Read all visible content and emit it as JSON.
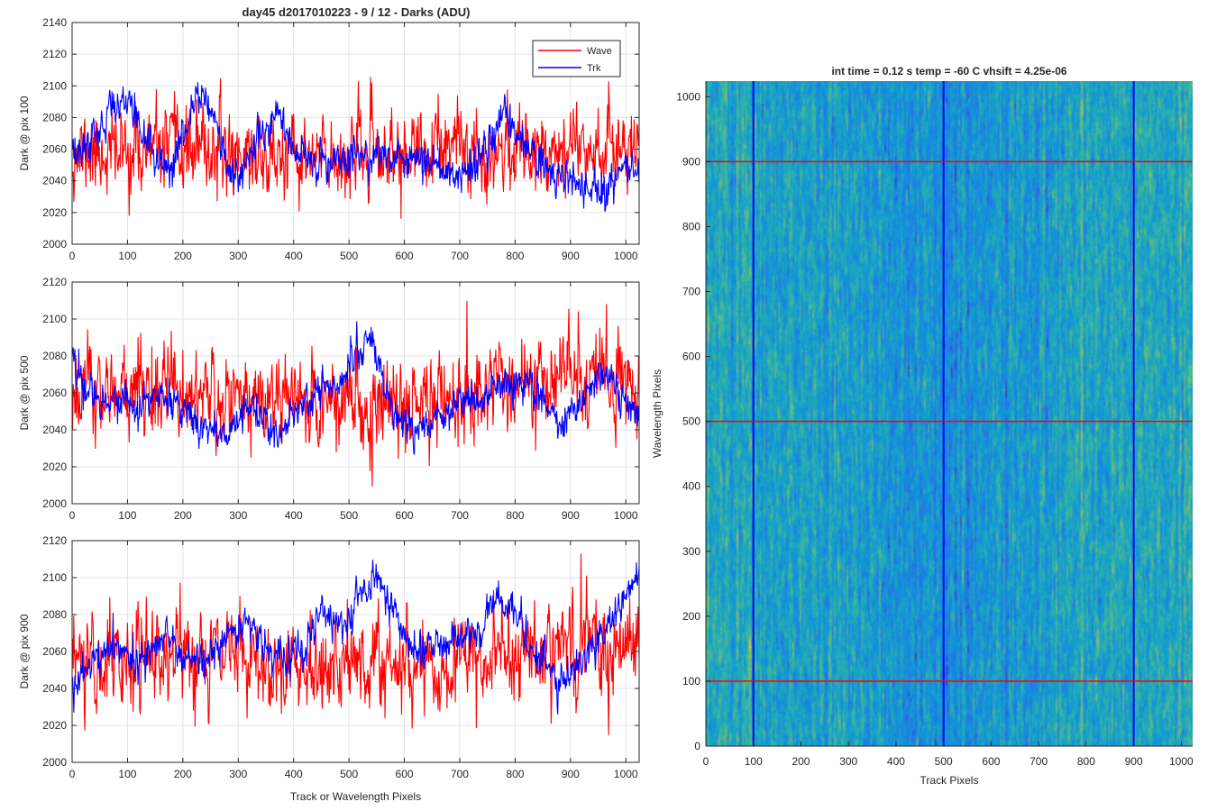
{
  "figure": {
    "title": "day45 d2017010223 - 9 / 12 - Darks (ADU)",
    "legend": {
      "placement": "top-right of first panel",
      "entries": [
        "Wave",
        "Trk"
      ]
    },
    "colors": {
      "wave": "#ff0000",
      "trk": "#0000ff",
      "grid": "#e3e3e3",
      "axis": "#262626"
    }
  },
  "chart_data": [
    {
      "type": "line",
      "ylabel": "Dark @ pix 100",
      "xlim": [
        0,
        1024
      ],
      "ylim": [
        2000,
        2140
      ],
      "xticks": [
        0,
        100,
        200,
        300,
        400,
        500,
        600,
        700,
        800,
        900,
        1000
      ],
      "yticks": [
        2000,
        2020,
        2040,
        2060,
        2080,
        2100,
        2120,
        2140
      ],
      "grid": true,
      "series": [
        {
          "name": "Wave",
          "color": "#ff0000",
          "noise": 13,
          "seed": 11,
          "anchors": [
            [
              0,
              2058
            ],
            [
              100,
              2058
            ],
            [
              200,
              2060
            ],
            [
              300,
              2058
            ],
            [
              400,
              2052
            ],
            [
              500,
              2056
            ],
            [
              600,
              2056
            ],
            [
              700,
              2060
            ],
            [
              800,
              2060
            ],
            [
              900,
              2064
            ],
            [
              1024,
              2062
            ]
          ]
        },
        {
          "name": "Trk",
          "color": "#0000ff",
          "noise": 6,
          "seed": 12,
          "anchors": [
            [
              0,
              2052
            ],
            [
              40,
              2068
            ],
            [
              70,
              2084
            ],
            [
              95,
              2094
            ],
            [
              120,
              2078
            ],
            [
              150,
              2054
            ],
            [
              180,
              2048
            ],
            [
              205,
              2072
            ],
            [
              225,
              2096
            ],
            [
              250,
              2092
            ],
            [
              270,
              2058
            ],
            [
              300,
              2042
            ],
            [
              330,
              2062
            ],
            [
              370,
              2082
            ],
            [
              400,
              2058
            ],
            [
              450,
              2052
            ],
            [
              500,
              2055
            ],
            [
              550,
              2058
            ],
            [
              620,
              2052
            ],
            [
              700,
              2044
            ],
            [
              740,
              2052
            ],
            [
              780,
              2082
            ],
            [
              820,
              2060
            ],
            [
              870,
              2045
            ],
            [
              920,
              2038
            ],
            [
              960,
              2034
            ],
            [
              1000,
              2054
            ],
            [
              1024,
              2046
            ]
          ]
        }
      ]
    },
    {
      "type": "line",
      "ylabel": "Dark @ pix 500",
      "xlim": [
        0,
        1024
      ],
      "ylim": [
        2000,
        2120
      ],
      "xticks": [
        0,
        100,
        200,
        300,
        400,
        500,
        600,
        700,
        800,
        900,
        1000
      ],
      "yticks": [
        2000,
        2020,
        2040,
        2060,
        2080,
        2100,
        2120
      ],
      "grid": true,
      "series": [
        {
          "name": "Wave",
          "color": "#ff0000",
          "noise": 13,
          "seed": 21,
          "anchors": [
            [
              0,
              2060
            ],
            [
              200,
              2062
            ],
            [
              300,
              2058
            ],
            [
              400,
              2055
            ],
            [
              500,
              2052
            ],
            [
              600,
              2057
            ],
            [
              700,
              2058
            ],
            [
              800,
              2066
            ],
            [
              900,
              2068
            ],
            [
              1024,
              2064
            ]
          ]
        },
        {
          "name": "Trk",
          "color": "#0000ff",
          "noise": 5,
          "seed": 22,
          "anchors": [
            [
              0,
              2080
            ],
            [
              20,
              2064
            ],
            [
              60,
              2058
            ],
            [
              100,
              2052
            ],
            [
              160,
              2058
            ],
            [
              200,
              2050
            ],
            [
              240,
              2040
            ],
            [
              280,
              2038
            ],
            [
              320,
              2056
            ],
            [
              350,
              2042
            ],
            [
              380,
              2036
            ],
            [
              410,
              2052
            ],
            [
              450,
              2062
            ],
            [
              490,
              2068
            ],
            [
              530,
              2090
            ],
            [
              550,
              2080
            ],
            [
              580,
              2050
            ],
            [
              620,
              2038
            ],
            [
              660,
              2048
            ],
            [
              700,
              2058
            ],
            [
              740,
              2052
            ],
            [
              760,
              2062
            ],
            [
              800,
              2066
            ],
            [
              840,
              2060
            ],
            [
              880,
              2042
            ],
            [
              920,
              2056
            ],
            [
              960,
              2070
            ],
            [
              1000,
              2058
            ],
            [
              1024,
              2046
            ]
          ]
        }
      ]
    },
    {
      "type": "line",
      "ylabel": "Dark @ pix 900",
      "xlabel": "Track or Wavelength Pixels",
      "xlim": [
        0,
        1024
      ],
      "ylim": [
        2000,
        2120
      ],
      "xticks": [
        0,
        100,
        200,
        300,
        400,
        500,
        600,
        700,
        800,
        900,
        1000
      ],
      "yticks": [
        2000,
        2020,
        2040,
        2060,
        2080,
        2100,
        2120
      ],
      "grid": true,
      "series": [
        {
          "name": "Wave",
          "color": "#ff0000",
          "noise": 13,
          "seed": 31,
          "anchors": [
            [
              0,
              2056
            ],
            [
              100,
              2055
            ],
            [
              200,
              2058
            ],
            [
              300,
              2058
            ],
            [
              400,
              2052
            ],
            [
              500,
              2054
            ],
            [
              600,
              2052
            ],
            [
              700,
              2054
            ],
            [
              800,
              2060
            ],
            [
              900,
              2062
            ],
            [
              1024,
              2062
            ]
          ]
        },
        {
          "name": "Trk",
          "color": "#0000ff",
          "noise": 5,
          "seed": 32,
          "anchors": [
            [
              0,
              2040
            ],
            [
              40,
              2058
            ],
            [
              80,
              2062
            ],
            [
              120,
              2056
            ],
            [
              150,
              2060
            ],
            [
              170,
              2072
            ],
            [
              200,
              2058
            ],
            [
              240,
              2052
            ],
            [
              280,
              2070
            ],
            [
              320,
              2074
            ],
            [
              350,
              2062
            ],
            [
              380,
              2058
            ],
            [
              420,
              2062
            ],
            [
              450,
              2082
            ],
            [
              490,
              2070
            ],
            [
              520,
              2090
            ],
            [
              550,
              2096
            ],
            [
              580,
              2084
            ],
            [
              620,
              2060
            ],
            [
              660,
              2062
            ],
            [
              700,
              2068
            ],
            [
              740,
              2072
            ],
            [
              760,
              2088
            ],
            [
              800,
              2082
            ],
            [
              840,
              2060
            ],
            [
              880,
              2040
            ],
            [
              910,
              2050
            ],
            [
              950,
              2066
            ],
            [
              980,
              2076
            ],
            [
              1000,
              2086
            ],
            [
              1024,
              2102
            ]
          ]
        }
      ]
    },
    {
      "type": "heatmap",
      "title": "int time = 0.12 s    temp = -60 C    vhsift = 4.25e-06",
      "xlabel": "Track Pixels",
      "ylabel": "Wavelength Pixels",
      "xlim": [
        0,
        1024
      ],
      "ylim": [
        0,
        1024
      ],
      "xticks": [
        0,
        100,
        200,
        300,
        400,
        500,
        600,
        700,
        800,
        900,
        1000
      ],
      "yticks": [
        0,
        100,
        200,
        300,
        400,
        500,
        600,
        700,
        800,
        900,
        1000
      ],
      "colormap": "parula",
      "marker_lines": {
        "vertical": {
          "color": "#0000ff",
          "x": [
            100,
            500,
            900
          ]
        },
        "horizontal": {
          "color": "#ff0000",
          "y": [
            100,
            500,
            900
          ]
        }
      }
    }
  ]
}
